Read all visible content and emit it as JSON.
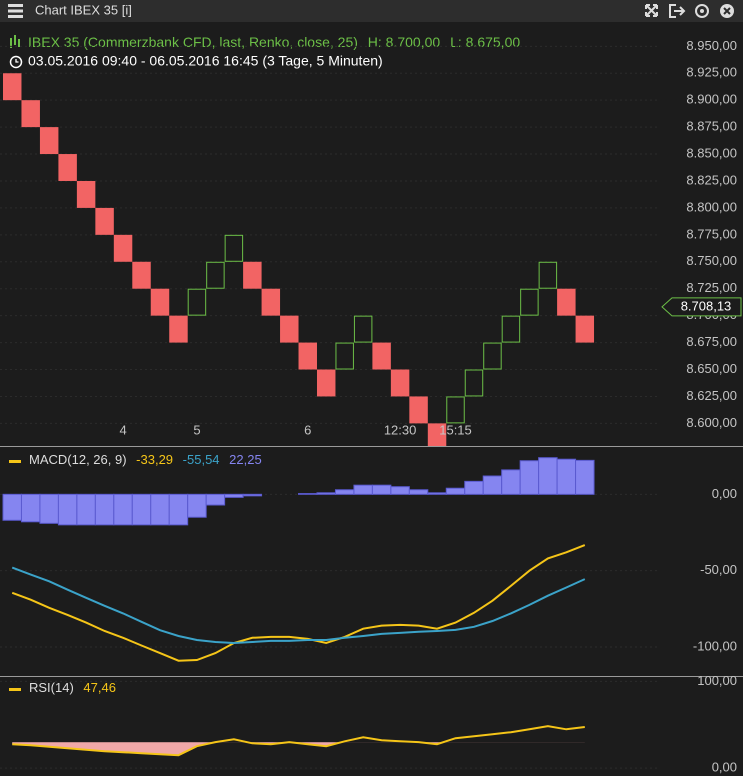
{
  "window": {
    "title": "Chart IBEX 35 [i]"
  },
  "chart_data": [
    {
      "type": "renko",
      "title": "IBEX 35 (Commerzbank CFD, last, Renko, close, 25)",
      "high_label": "H: 8.700,00",
      "low_label": "L: 8.675,00",
      "subtitle": "03.05.2016 09:40 - 06.05.2016 16:45 (3 Tage, 5 Minuten)",
      "categories": [
        null,
        null,
        null,
        null,
        null,
        null,
        "4",
        null,
        null,
        null,
        "5",
        null,
        null,
        null,
        null,
        null,
        "6",
        null,
        null,
        null,
        null,
        "12:30",
        null,
        null,
        "15:15",
        null,
        null,
        null,
        null,
        null,
        null,
        null
      ],
      "open": [
        8925,
        8900,
        8875,
        8850,
        8825,
        8800,
        8775,
        8750,
        8725,
        8700,
        8700,
        8725,
        8750,
        8750,
        8725,
        8700,
        8675,
        8650,
        8650,
        8675,
        8675,
        8650,
        8625,
        8600,
        8600,
        8625,
        8650,
        8675,
        8700,
        8725,
        8725,
        8700
      ],
      "close": [
        8900,
        8875,
        8850,
        8825,
        8800,
        8775,
        8750,
        8725,
        8700,
        8675,
        8725,
        8750,
        8775,
        8725,
        8700,
        8675,
        8650,
        8625,
        8675,
        8700,
        8650,
        8625,
        8600,
        8575,
        8625,
        8650,
        8675,
        8700,
        8725,
        8750,
        8700,
        8675
      ],
      "up_color": "#6cbf47",
      "down_color": "#f26464",
      "last_price": {
        "value": 8708.13,
        "label": "8.708,13"
      },
      "ylim": [
        8579,
        8967
      ],
      "yticks": [
        {
          "value": 8600,
          "label": "8.600,00"
        },
        {
          "value": 8625,
          "label": "8.625,00"
        },
        {
          "value": 8650,
          "label": "8.650,00"
        },
        {
          "value": 8675,
          "label": "8.675,00"
        },
        {
          "value": 8700,
          "label": "8.700,00"
        },
        {
          "value": 8725,
          "label": "8.725,00"
        },
        {
          "value": 8750,
          "label": "8.750,00"
        },
        {
          "value": 8775,
          "label": "8.775,00"
        },
        {
          "value": 8800,
          "label": "8.800,00"
        },
        {
          "value": 8825,
          "label": "8.825,00"
        },
        {
          "value": 8850,
          "label": "8.850,00"
        },
        {
          "value": 8875,
          "label": "8.875,00"
        },
        {
          "value": 8900,
          "label": "8.900,00"
        },
        {
          "value": 8925,
          "label": "8.925,00"
        },
        {
          "value": 8950,
          "label": "8.950,00"
        }
      ],
      "grid": true
    },
    {
      "type": "macd",
      "title": "MACD(12, 26, 9)",
      "series": [
        {
          "style": "line",
          "color": "#f5c518",
          "last_label": "-33,29",
          "values": [
            -64.5,
            -69,
            -74.3,
            -79,
            -84,
            -89.5,
            -94,
            -99,
            -104,
            -109,
            -108.5,
            -104,
            -97.4,
            -94,
            -93.4,
            -93.4,
            -94.7,
            -97.4,
            -93.4,
            -88,
            -86,
            -85.5,
            -86,
            -88,
            -84,
            -77.6,
            -69.7,
            -60,
            -50,
            -42,
            -38,
            -33.29
          ]
        },
        {
          "style": "line",
          "color": "#3ba3c9",
          "last_label": "-55,54",
          "values": [
            -48,
            -52.6,
            -57,
            -62.5,
            -67.8,
            -73,
            -78,
            -83.5,
            -89,
            -92.8,
            -95.4,
            -96.7,
            -97.4,
            -96.7,
            -96,
            -96,
            -95.4,
            -95.4,
            -94,
            -92.8,
            -91.4,
            -90.8,
            -90,
            -89.5,
            -88.8,
            -86.8,
            -83,
            -78,
            -72.4,
            -66.4,
            -61,
            -55.54
          ]
        },
        {
          "style": "histogram",
          "color": "#8585f0",
          "last_label": "22,25",
          "values": [
            -17,
            -18,
            -19,
            -20,
            -20,
            -20,
            -20,
            -20,
            -20,
            -20,
            -15,
            -7,
            -2,
            -1,
            0,
            0,
            0.5,
            1,
            3,
            6,
            6,
            5,
            3,
            1,
            4,
            8.5,
            12,
            16,
            22,
            24,
            23,
            22.25
          ]
        }
      ],
      "ylim": [
        -119,
        31
      ],
      "yticks": [
        {
          "value": -100,
          "label": "-100,00"
        },
        {
          "value": -50,
          "label": "-50,00"
        },
        {
          "value": 0,
          "label": "0,00"
        }
      ],
      "grid": true
    },
    {
      "type": "rsi",
      "title": "RSI(14)",
      "series": [
        {
          "style": "line",
          "color": "#f5c518",
          "last_label": "47,46",
          "values": [
            27.6,
            26.4,
            24.7,
            23,
            21.3,
            19.5,
            18.4,
            17.2,
            16,
            15,
            25.3,
            30,
            33.3,
            28.7,
            27.6,
            30,
            27.6,
            25.3,
            31,
            35.6,
            32.2,
            31,
            30,
            27.6,
            34.5,
            36.8,
            39,
            41.4,
            44.8,
            48.3,
            44.8,
            47.46
          ]
        }
      ],
      "oversold": 30,
      "oversold_color": "#f0a8a8",
      "ylim": [
        -9,
        105
      ],
      "yticks": [
        {
          "value": 0,
          "label": "0,00"
        },
        {
          "value": 100,
          "label": "100,00"
        }
      ],
      "grid": true
    }
  ]
}
